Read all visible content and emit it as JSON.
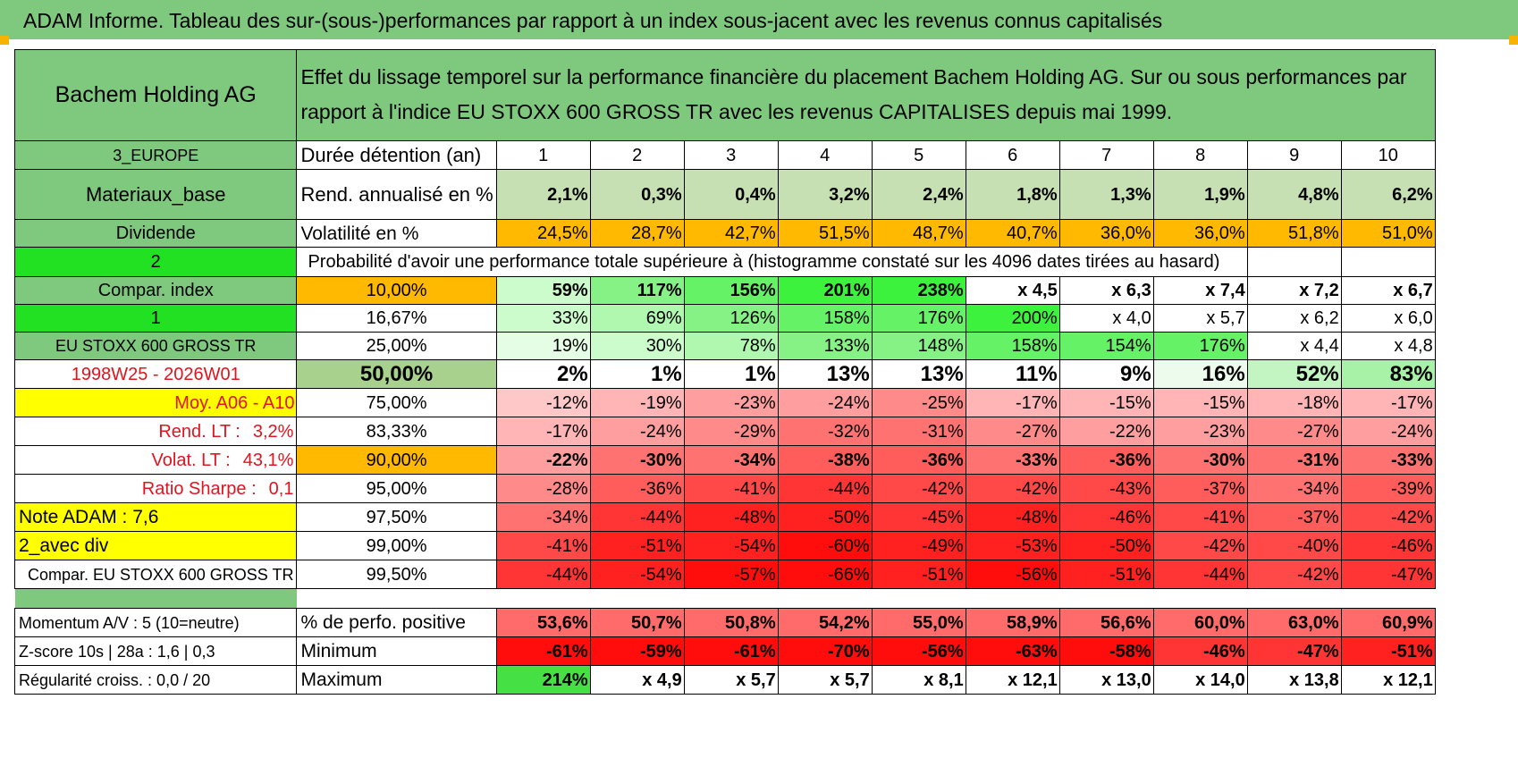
{
  "title": "ADAM Informe. Tableau des sur-(sous-)performances par rapport à un index sous-jacent avec les revenus connus capitalisés",
  "header": {
    "company": "Bachem Holding AG",
    "description": "Effet du lissage temporel sur la performance financière du placement Bachem Holding AG. Sur ou sous performances par rapport à l'indice EU STOXX 600 GROSS TR avec les revenus CAPITALISES depuis mai 1999."
  },
  "left_labels": {
    "region": "3_EUROPE",
    "sector": "Materiaux_base",
    "dividend": "Dividende",
    "param_a": "2",
    "compar_index": "Compar. index",
    "param_b": "1",
    "index_name": "EU STOXX 600 GROSS TR",
    "period": "1998W25 - 2026W01",
    "moy": "Moy. A06 - A10",
    "rend_lt_label": "Rend. LT :",
    "rend_lt_value": "3,2%",
    "volat_lt_label": "Volat. LT :",
    "volat_lt_value": "43,1%",
    "sharpe_label": "Ratio Sharpe :",
    "sharpe_value": "0,1",
    "note": "Note ADAM : 7,6",
    "div_mode": "2_avec div",
    "compar_full": "Compar. EU STOXX 600 GROSS TR",
    "momentum": "Momentum A/V : 5 (10=neutre)",
    "zscore": "Z-score 10s | 28a : 1,6 | 0,3",
    "regularite": "Régularité croiss. : 0,0 / 20"
  },
  "row_labels": {
    "duration": "Durée détention (an)",
    "rend": "Rend. annualisé en %",
    "vol": "Volatilité en %",
    "prob_header": "Probabilité d'avoir une performance totale supérieure à (histogramme constaté sur les 4096 dates tirées au hasard)",
    "pct_positive": "% de perfo. positive",
    "minimum": "Minimum",
    "maximum": "Maximum"
  },
  "years": [
    "1",
    "2",
    "3",
    "4",
    "5",
    "6",
    "7",
    "8",
    "9",
    "10"
  ],
  "rend_values": [
    "2,1%",
    "0,3%",
    "0,4%",
    "3,2%",
    "2,4%",
    "1,8%",
    "1,3%",
    "1,9%",
    "4,8%",
    "6,2%"
  ],
  "vol_values": [
    "24,5%",
    "28,7%",
    "42,7%",
    "51,5%",
    "48,7%",
    "40,7%",
    "36,0%",
    "36,0%",
    "51,8%",
    "51,0%"
  ],
  "percentile_rows": [
    {
      "pct": "10,00%",
      "values": [
        "59%",
        "117%",
        "156%",
        "201%",
        "238%",
        "x 4,5",
        "x 6,3",
        "x 7,4",
        "x 7,2",
        "x 6,7"
      ]
    },
    {
      "pct": "16,67%",
      "values": [
        "33%",
        "69%",
        "126%",
        "158%",
        "176%",
        "200%",
        "x 4,0",
        "x 5,7",
        "x 6,2",
        "x 6,0"
      ]
    },
    {
      "pct": "25,00%",
      "values": [
        "19%",
        "30%",
        "78%",
        "133%",
        "148%",
        "158%",
        "154%",
        "176%",
        "x 4,4",
        "x 4,8"
      ]
    },
    {
      "pct": "50,00%",
      "values": [
        "2%",
        "1%",
        "1%",
        "13%",
        "13%",
        "11%",
        "9%",
        "16%",
        "52%",
        "83%"
      ]
    },
    {
      "pct": "75,00%",
      "values": [
        "-12%",
        "-19%",
        "-23%",
        "-24%",
        "-25%",
        "-17%",
        "-15%",
        "-15%",
        "-18%",
        "-17%"
      ]
    },
    {
      "pct": "83,33%",
      "values": [
        "-17%",
        "-24%",
        "-29%",
        "-32%",
        "-31%",
        "-27%",
        "-22%",
        "-23%",
        "-27%",
        "-24%"
      ]
    },
    {
      "pct": "90,00%",
      "values": [
        "-22%",
        "-30%",
        "-34%",
        "-38%",
        "-36%",
        "-33%",
        "-36%",
        "-30%",
        "-31%",
        "-33%"
      ]
    },
    {
      "pct": "95,00%",
      "values": [
        "-28%",
        "-36%",
        "-41%",
        "-44%",
        "-42%",
        "-42%",
        "-43%",
        "-37%",
        "-34%",
        "-39%"
      ]
    },
    {
      "pct": "97,50%",
      "values": [
        "-34%",
        "-44%",
        "-48%",
        "-50%",
        "-45%",
        "-48%",
        "-46%",
        "-41%",
        "-37%",
        "-42%"
      ]
    },
    {
      "pct": "99,00%",
      "values": [
        "-41%",
        "-51%",
        "-54%",
        "-60%",
        "-49%",
        "-53%",
        "-50%",
        "-42%",
        "-40%",
        "-46%"
      ]
    },
    {
      "pct": "99,50%",
      "values": [
        "-44%",
        "-54%",
        "-57%",
        "-66%",
        "-51%",
        "-56%",
        "-51%",
        "-44%",
        "-42%",
        "-47%"
      ]
    }
  ],
  "pct_positive_values": [
    "53,6%",
    "50,7%",
    "50,8%",
    "54,2%",
    "55,0%",
    "58,9%",
    "56,6%",
    "60,0%",
    "63,0%",
    "60,9%"
  ],
  "minimum_values": [
    "-61%",
    "-59%",
    "-61%",
    "-70%",
    "-56%",
    "-63%",
    "-58%",
    "-46%",
    "-47%",
    "-51%"
  ],
  "maximum_values": [
    "214%",
    "x 4,9",
    "x 5,7",
    "x 5,7",
    "x 8,1",
    "x 12,1",
    "x 13,0",
    "x 14,0",
    "x 13,8",
    "x 12,1"
  ],
  "colors": {
    "header_green": "#7ec97e",
    "bright_green": "#22e022",
    "yellow": "#ffff00",
    "orange": "#ffb900",
    "light_green": "#c6e0b4",
    "red_text": "#e0141e"
  }
}
